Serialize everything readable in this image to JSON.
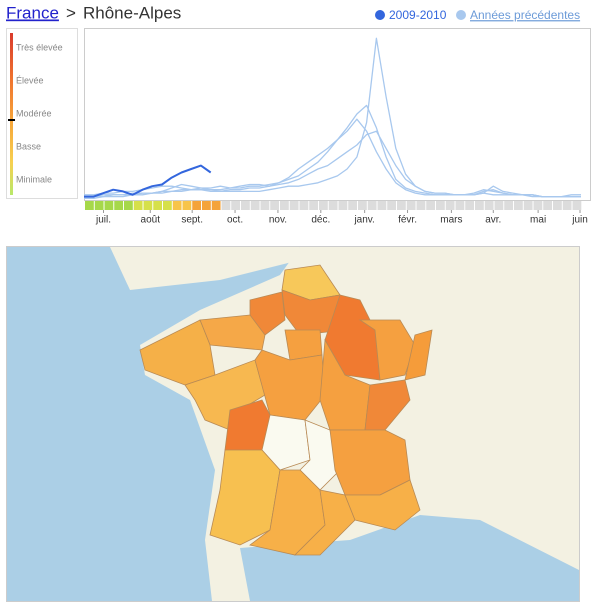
{
  "header": {
    "breadcrumb": {
      "link": "France",
      "separator": ">",
      "current": "Rhône-Alpes"
    }
  },
  "scale": {
    "levels": [
      "Très élevée",
      "Élevée",
      "Modérée",
      "Basse",
      "Minimale"
    ]
  },
  "chart_data": {
    "type": "line",
    "x": [
      0,
      1,
      2,
      3,
      4,
      5,
      6,
      7,
      8,
      9,
      10,
      11,
      12,
      13,
      14,
      15,
      16,
      17,
      18,
      19,
      20,
      21,
      22,
      23,
      24,
      25,
      26,
      27,
      28,
      29,
      30,
      31,
      32,
      33,
      34,
      35,
      36,
      37,
      38,
      39,
      40,
      41,
      42,
      43,
      44,
      45,
      46,
      47,
      48,
      49,
      50,
      51
    ],
    "xlim": [
      0,
      51
    ],
    "ylim": [
      0,
      100
    ],
    "xticks": [
      {
        "value": 2,
        "label": "juil."
      },
      {
        "value": 6.8,
        "label": "août"
      },
      {
        "value": 11.1,
        "label": "sept."
      },
      {
        "value": 15.5,
        "label": "oct."
      },
      {
        "value": 19.9,
        "label": "nov."
      },
      {
        "value": 24.3,
        "label": "déc."
      },
      {
        "value": 28.8,
        "label": "janv."
      },
      {
        "value": 33.2,
        "label": "févr."
      },
      {
        "value": 37.7,
        "label": "mars"
      },
      {
        "value": 42,
        "label": "avr."
      },
      {
        "value": 46.6,
        "label": "mai"
      },
      {
        "value": 50.9,
        "label": "juin"
      }
    ],
    "series": [
      {
        "name": "2009-2010",
        "color": "#3366dd",
        "values": [
          2,
          2,
          4,
          6,
          5,
          3,
          6,
          8,
          9,
          13,
          16,
          18,
          20,
          16,
          null,
          null,
          null,
          null,
          null,
          null,
          null,
          null,
          null,
          null,
          null,
          null,
          null,
          null,
          null,
          null,
          null,
          null,
          null,
          null,
          null,
          null,
          null,
          null,
          null,
          null,
          null,
          null,
          null,
          null,
          null,
          null,
          null,
          null,
          null,
          null,
          null,
          null
        ]
      },
      {
        "name": "Années précédentes",
        "color": "#a8c8ee",
        "lines": [
          [
            3,
            3,
            4,
            4,
            5,
            5,
            6,
            7,
            8,
            8,
            7,
            6,
            6,
            6,
            5,
            5,
            5,
            5,
            5,
            6,
            7,
            8,
            8,
            9,
            10,
            12,
            14,
            18,
            25,
            45,
            94,
            60,
            30,
            15,
            8,
            5,
            4,
            4,
            3,
            3,
            3,
            4,
            3,
            3,
            3,
            3,
            3,
            2,
            2,
            2,
            2,
            2
          ],
          [
            2,
            2,
            3,
            3,
            3,
            4,
            4,
            4,
            5,
            5,
            6,
            6,
            7,
            7,
            8,
            7,
            7,
            8,
            8,
            9,
            10,
            12,
            14,
            18,
            22,
            28,
            35,
            40,
            47,
            40,
            28,
            18,
            10,
            6,
            4,
            3,
            3,
            3,
            3,
            3,
            4,
            6,
            5,
            4,
            3,
            3,
            2,
            2,
            2,
            2,
            2,
            2
          ],
          [
            1,
            1,
            2,
            2,
            2,
            3,
            3,
            4,
            5,
            7,
            9,
            8,
            7,
            6,
            6,
            7,
            8,
            9,
            9,
            8,
            10,
            13,
            18,
            22,
            26,
            30,
            35,
            42,
            50,
            55,
            42,
            25,
            12,
            7,
            5,
            4,
            3,
            3,
            3,
            3,
            3,
            5,
            6,
            4,
            3,
            3,
            3,
            2,
            2,
            2,
            3,
            3
          ],
          [
            2,
            2,
            2,
            3,
            3,
            3,
            4,
            4,
            4,
            5,
            5,
            6,
            6,
            5,
            5,
            6,
            6,
            7,
            7,
            8,
            9,
            10,
            12,
            15,
            18,
            20,
            24,
            28,
            32,
            38,
            40,
            30,
            20,
            12,
            8,
            5,
            4,
            4,
            3,
            3,
            3,
            4,
            8,
            5,
            4,
            3,
            3,
            2,
            2,
            2,
            2,
            2
          ]
        ]
      }
    ]
  }
}
